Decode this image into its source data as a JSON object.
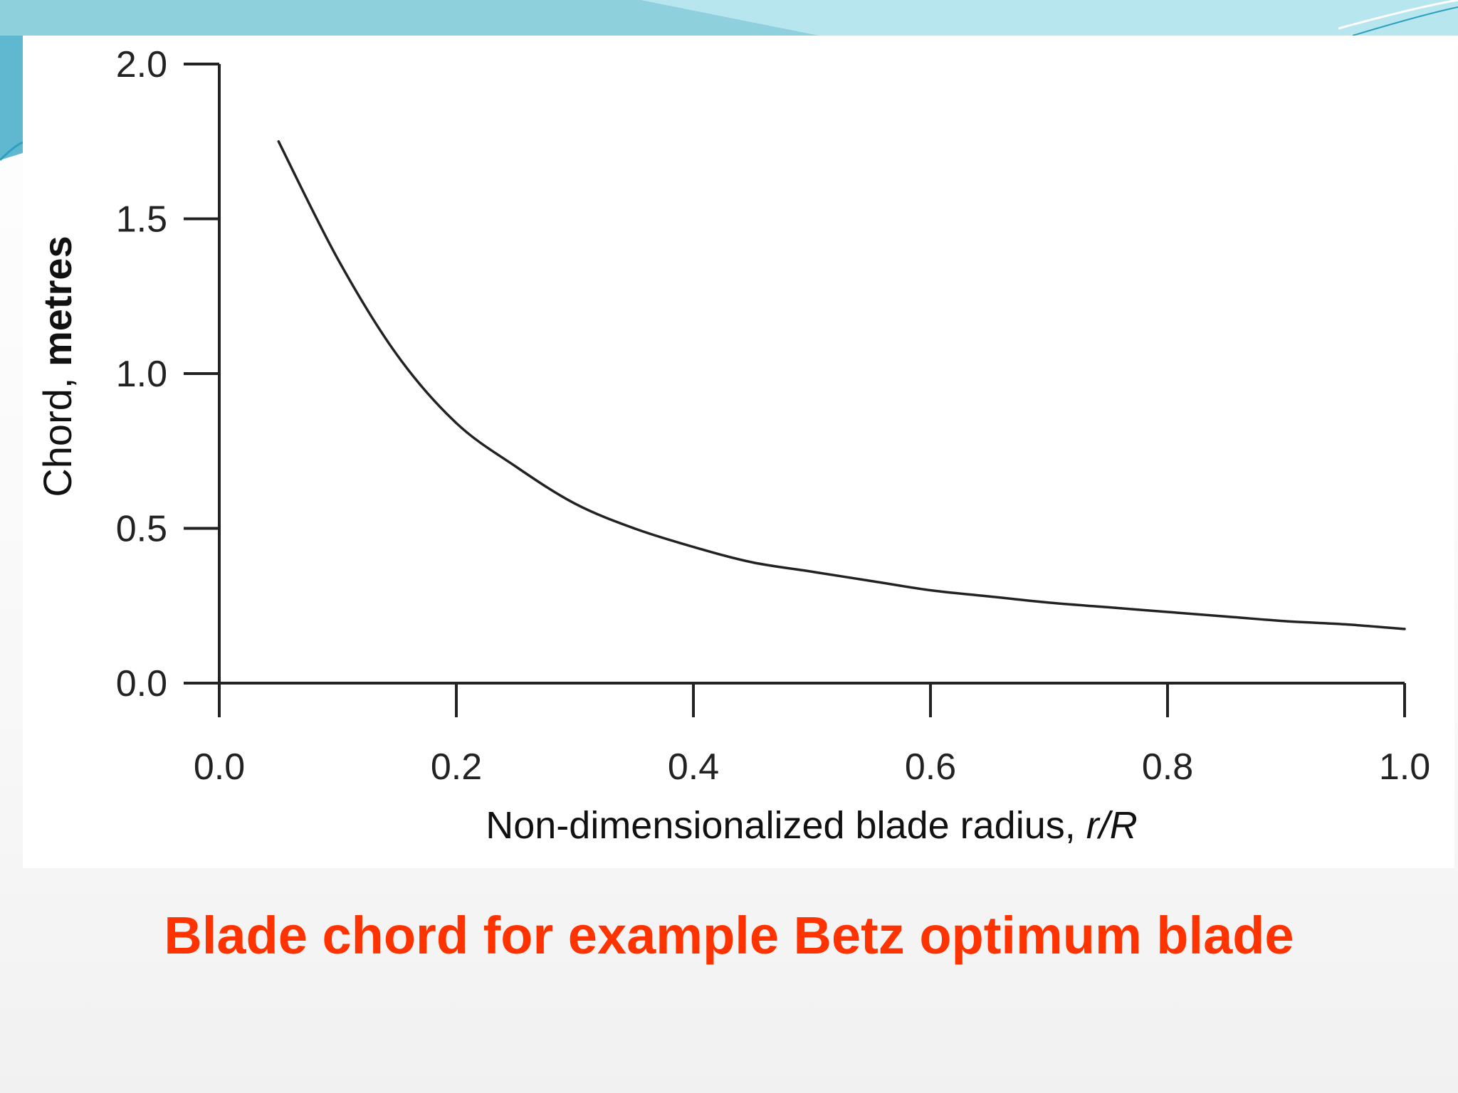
{
  "slide": {
    "caption": "Blade chord for example Betz optimum blade",
    "accent_color": "#ff3300",
    "theme_color": "#7cc7d9"
  },
  "chart_data": {
    "type": "line",
    "title": "",
    "xlabel_main": "Non-dimensionalized blade radius, ",
    "xlabel_var": "r/R",
    "ylabel_light": "Chord, ",
    "ylabel_bold": "metres",
    "xlim": [
      0.0,
      1.0
    ],
    "ylim": [
      0.0,
      2.0
    ],
    "x_ticks": [
      "0.0",
      "0.2",
      "0.4",
      "0.6",
      "0.8",
      "1.0"
    ],
    "y_ticks": [
      "0.0",
      "0.5",
      "1.0",
      "1.5",
      "2.0"
    ],
    "grid": false,
    "series": [
      {
        "x": [
          0.05,
          0.1,
          0.15,
          0.2,
          0.25,
          0.3,
          0.35,
          0.4,
          0.45,
          0.5,
          0.55,
          0.6,
          0.65,
          0.7,
          0.75,
          0.8,
          0.85,
          0.9,
          0.95,
          1.0
        ],
        "y": [
          1.75,
          1.37,
          1.06,
          0.84,
          0.7,
          0.58,
          0.5,
          0.44,
          0.39,
          0.36,
          0.33,
          0.3,
          0.28,
          0.26,
          0.245,
          0.23,
          0.215,
          0.2,
          0.19,
          0.175
        ]
      }
    ]
  }
}
